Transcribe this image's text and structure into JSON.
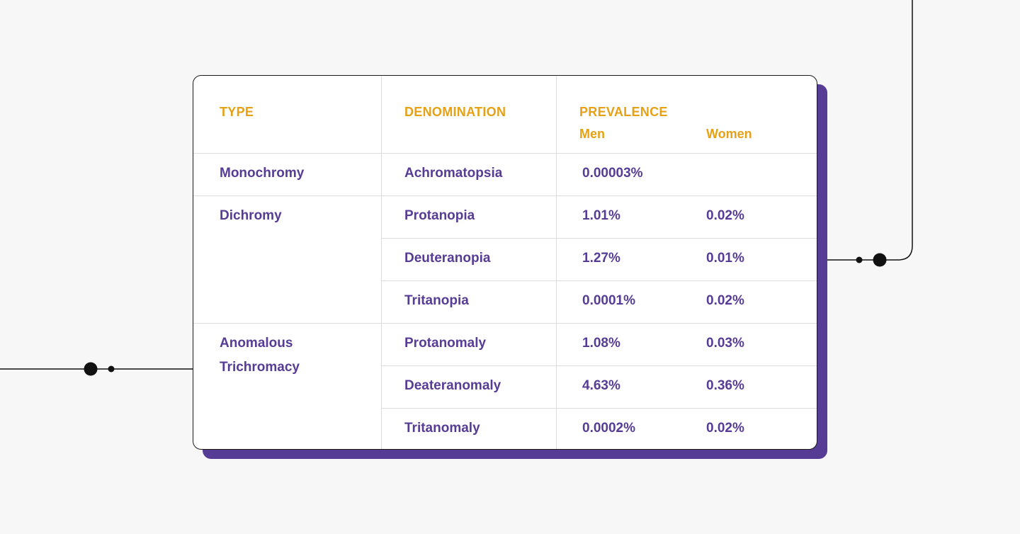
{
  "colors": {
    "accent_header": "#e6a117",
    "accent_text": "#573c96",
    "shadow": "#573c96",
    "background": "#f7f7f7",
    "card": "#ffffff",
    "connector": "#111111"
  },
  "table": {
    "headers": {
      "type": "TYPE",
      "denomination": "DENOMINATION",
      "prevalence": "PREVALENCE",
      "men": "Men",
      "women": "Women"
    },
    "groups": [
      {
        "type": "Monochromy",
        "rows": [
          {
            "denomination": "Achromatopsia",
            "men": "0.00003%",
            "women": ""
          }
        ]
      },
      {
        "type": "Dichromy",
        "rows": [
          {
            "denomination": "Protanopia",
            "men": "1.01%",
            "women": "0.02%"
          },
          {
            "denomination": "Deuteranopia",
            "men": "1.27%",
            "women": "0.01%"
          },
          {
            "denomination": "Tritanopia",
            "men": "0.0001%",
            "women": "0.02%"
          }
        ]
      },
      {
        "type": "Anomalous Trichromacy",
        "rows": [
          {
            "denomination": "Protanomaly",
            "men": "1.08%",
            "women": "0.03%"
          },
          {
            "denomination": "Deateranomaly",
            "men": "4.63%",
            "women": "0.36%"
          },
          {
            "denomination": "Tritanomaly",
            "men": "0.0002%",
            "women": "0.02%"
          }
        ]
      }
    ]
  }
}
